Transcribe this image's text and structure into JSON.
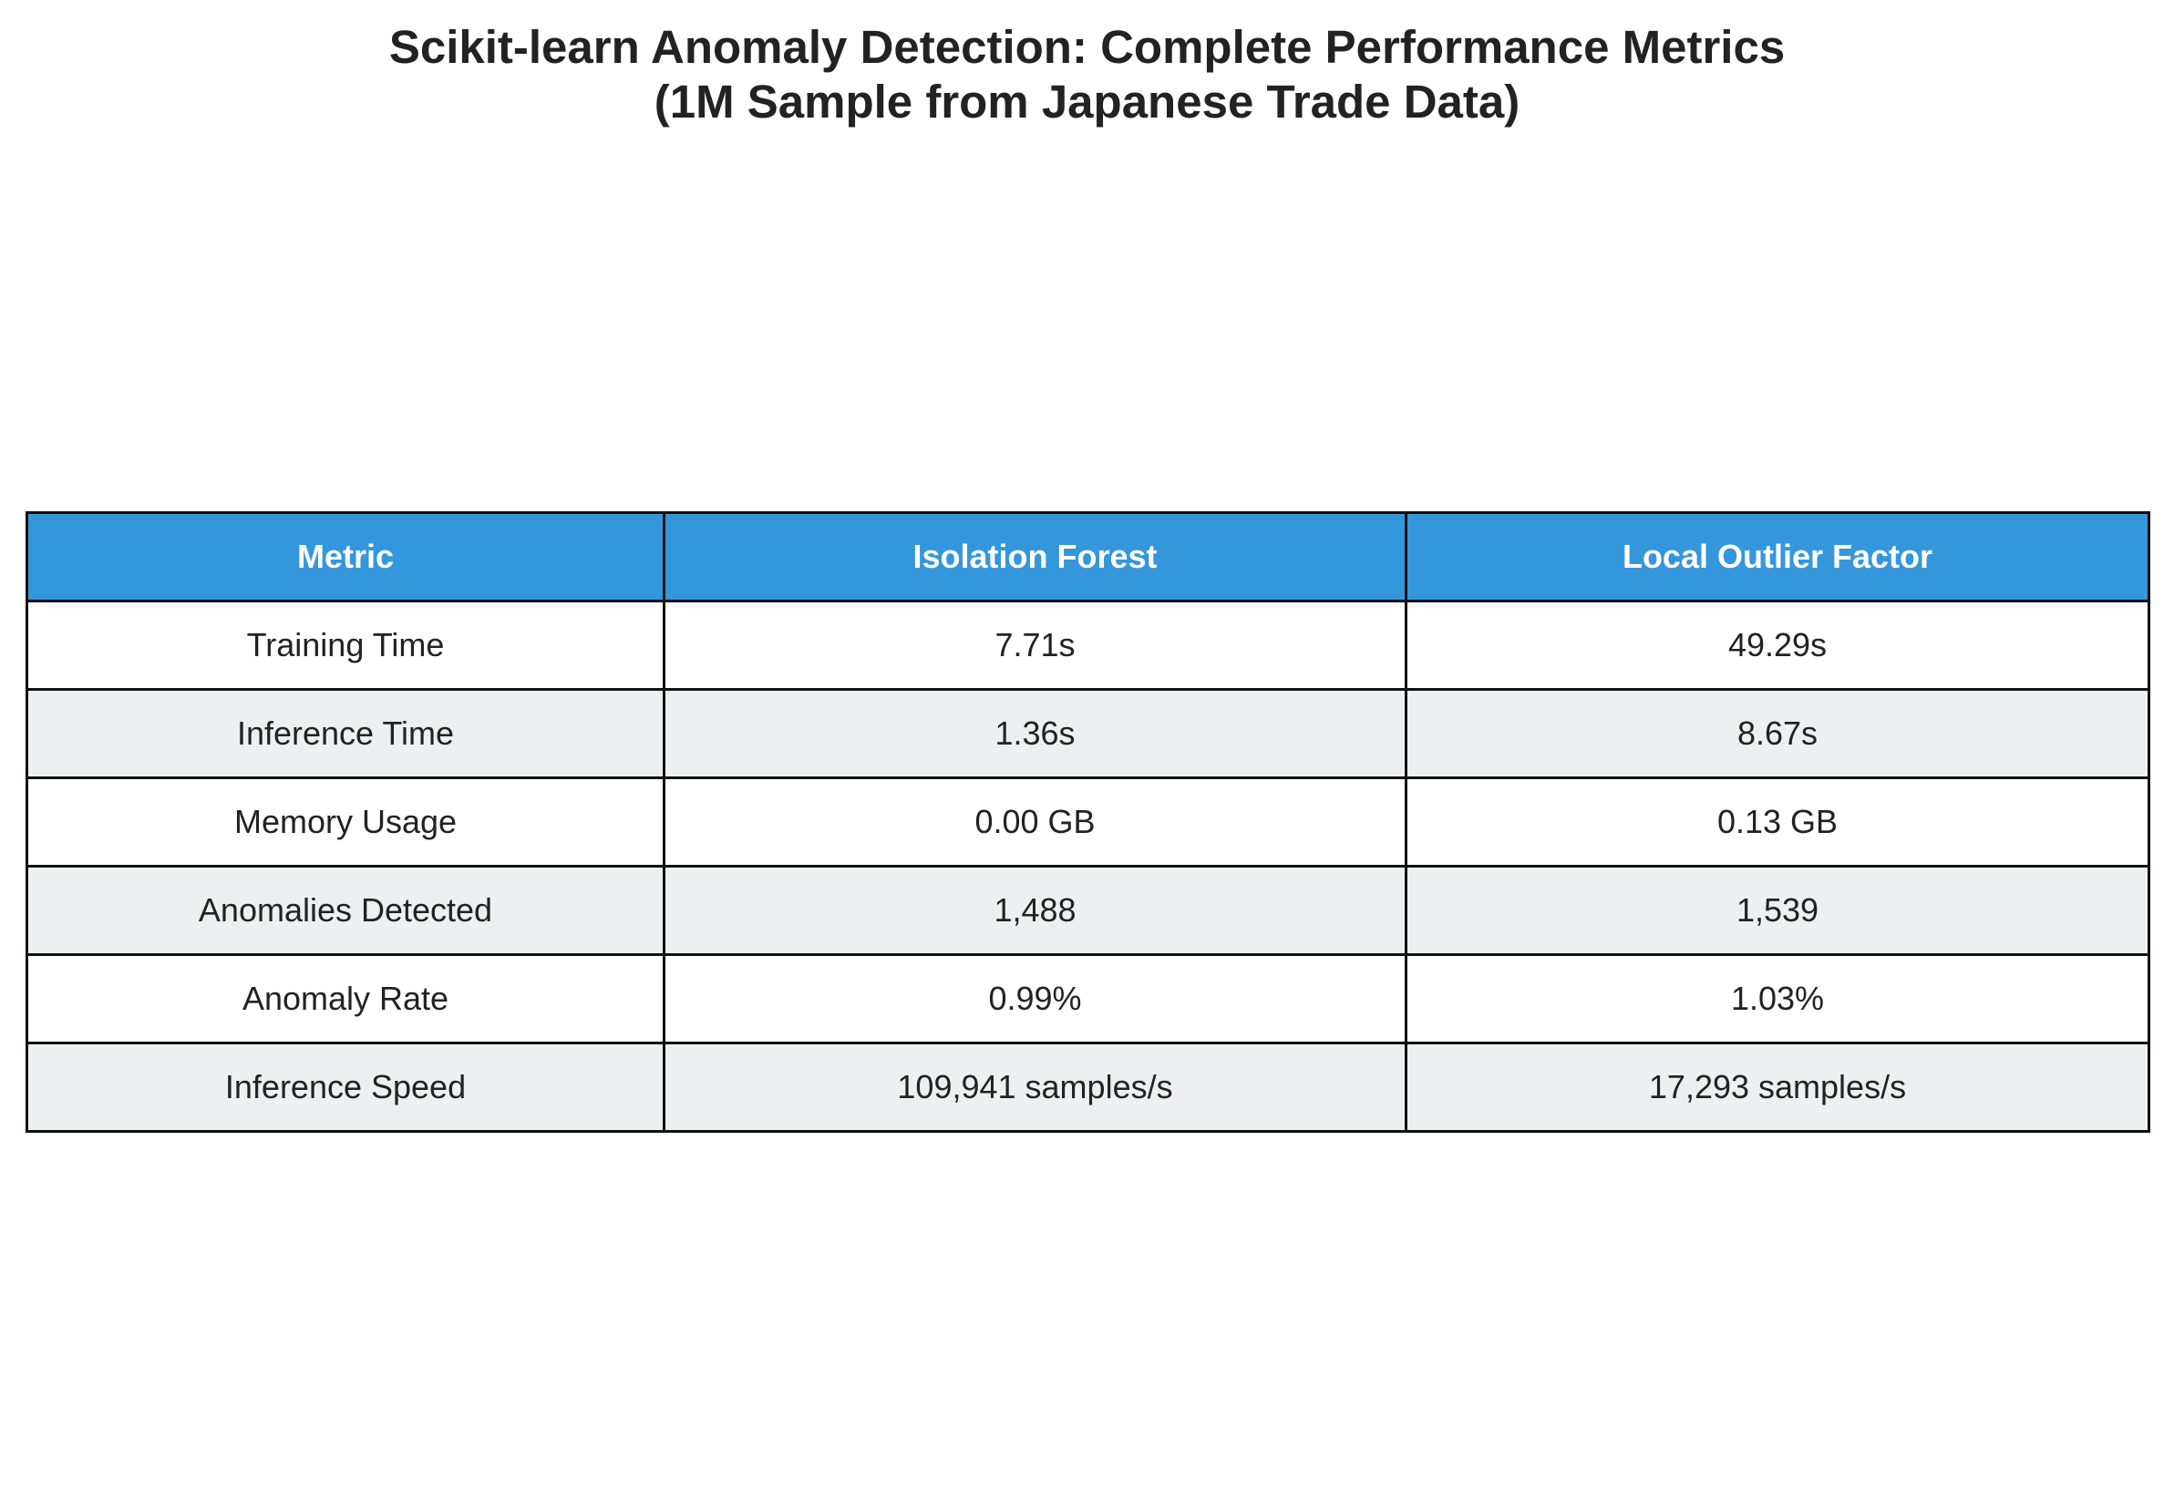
{
  "chart_data": {
    "type": "table",
    "title": "Scikit-learn Anomaly Detection: Complete Performance Metrics",
    "subtitle": "(1M Sample from Japanese Trade Data)",
    "columns": [
      "Metric",
      "Isolation Forest",
      "Local Outlier Factor"
    ],
    "rows": [
      [
        "Training Time",
        "7.71s",
        "49.29s"
      ],
      [
        "Inference Time",
        "1.36s",
        "8.67s"
      ],
      [
        "Memory Usage",
        "0.00 GB",
        "0.13 GB"
      ],
      [
        "Anomalies Detected",
        "1,488",
        "1,539"
      ],
      [
        "Anomaly Rate",
        "0.99%",
        "1.03%"
      ],
      [
        "Inference Speed",
        "109,941 samples/s",
        "17,293 samples/s"
      ]
    ],
    "colors": {
      "header_background": "#3597db",
      "header_text": "#ffffff",
      "row_even_background": "#ecf0f1",
      "row_odd_background": "#ffffff",
      "border": "#111111"
    }
  }
}
